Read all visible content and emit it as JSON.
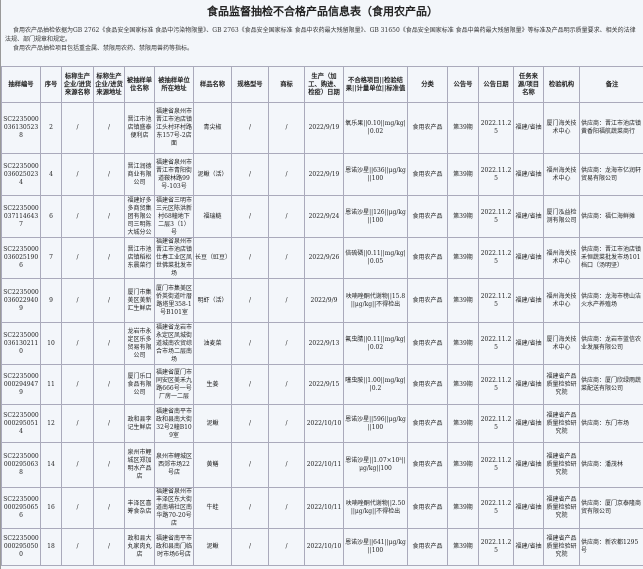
{
  "title": "食品监督抽检不合格产品信息表（食用农产品）",
  "intro": [
    "食用农产品抽检依据为GB 2762《食品安全国家标准 食品中污染物限量》、GB 2763《食品安全国家标准 食品中农药最大残留限量》、GB 31650《食品安全国家标准 食品中兽药最大残留限量》等标准及产品明示质量要求、相关的法律法规、部门规章和规定。",
    "食用农产品抽检项目包括重金属、禁限用农药、禁限用兽药等指标。"
  ],
  "headers": [
    "抽样编号",
    "序号",
    "标称生产企业/进货来源名称",
    "标称生产企业/进货来源地址",
    "被抽样单位名称",
    "被抽样单位所在地址",
    "样品名称",
    "规格型号",
    "商标",
    "生产（加工、购进、检疫）日期",
    "不合格项目||检验结果||计量单位||标准值",
    "分类",
    "公告号",
    "公告日期",
    "任务来源/项目名称",
    "检验机构",
    "备注"
  ],
  "rows": [
    [
      "SC22350000361305238",
      "2",
      "/",
      "/",
      "晋江市池店镇盛泰便利店",
      "福建省泉州市晋江市池店镇江头村环村路东157号-2店面",
      "青尖椒",
      "/",
      "/",
      "2022/9/19",
      "氧乐果||0.10||mg/kg||0.02",
      "食用农产品",
      "第39期",
      "2022.11.25",
      "福建/省抽",
      "厦门海关技术中心",
      "供应商：晋江市池店镇黄香阳福航蔬菜商行"
    ],
    [
      "SC22350000360250234",
      "4",
      "/",
      "/",
      "晋江润德商业有限公司",
      "福建省泉州市晋江市青阳街道鞍林路99号-103号",
      "泥鳅（活）",
      "/",
      "/",
      "2022/9/19",
      "恩诺沙星||636||μg/kg||100",
      "食用农产品",
      "第39期",
      "2022.11.25",
      "福建/省抽",
      "福州海关技术中心",
      "供应商：龙海市亿润轩贸易有限公司"
    ],
    [
      "SC22350000371146437",
      "6",
      "/",
      "/",
      "福建好多多商贸集团有限公司三明陈大城分公",
      "福建省三明市三元区陈洪新村68幢地下二层3（1）号",
      "福瑞鲢",
      "/",
      "/",
      "2022/9/24",
      "恩诺沙星||126||μg/kg||100",
      "食用农产品",
      "第39期",
      "2022.11.25",
      "福建/省抽",
      "厦门泓益检测有限公司",
      "供应商：福仁海鲜摊"
    ],
    [
      "SC22350000360251906",
      "7",
      "/",
      "/",
      "晋江市池店镇稻松东晨菜行",
      "福建省泉州市晋江市池店镇仕春工业区凤世佛菜批发市场",
      "长豆（豇豆）",
      "/",
      "/",
      "2022/9/26",
      "倍硫磷||0.11||mg/kg||0.05",
      "食用农产品",
      "第39期",
      "2022.11.25",
      "福建/省抽",
      "福州海关技术中心",
      "供应商：晋江市池店镇禾恒蔬菜批发市场101档口（汤明坚）"
    ],
    [
      "SC22350000360229409",
      "9",
      "/",
      "/",
      "厦门市集美区美新汇生鲜店",
      "厦门市集美区侨英街道叶厝路塔里358-1号B101室",
      "明虾（活）",
      "/",
      "/",
      "2022/9/9",
      "呋喃唑酮代谢物||15.8||μg/kg||不得检出",
      "食用农产品",
      "第39期",
      "2022.11.25",
      "福建/省抽",
      "福州海关技术中心",
      "供应商：龙海市榜山洁火水产养殖场"
    ],
    [
      "SC22350000361302110",
      "10",
      "/",
      "/",
      "龙岩市永定区乐多贸易有限公司",
      "福建省龙岩市永定区凤城街道城南农贸综合市场二层南场",
      "油麦菜",
      "/",
      "/",
      "2022/9/13",
      "氟虫腈||0.11||mg/kg||0.02",
      "食用农产品",
      "第39期",
      "2022.11.25",
      "福建/省抽",
      "厦门海关技术中心",
      "供应商：龙岩市蓝信农业发展有限公司"
    ],
    [
      "SC22350000002949479",
      "11",
      "/",
      "/",
      "厦门乐口食品有限公司",
      "福建省厦门市同安区美禾九路666号一号厂房一二层",
      "生姜",
      "/",
      "/",
      "2022/9/15",
      "噻虫胺||1.00||mg/kg||0.2",
      "食用农产品",
      "第39期",
      "2022.11.25",
      "福建/省抽",
      "福建省产品质量检验研究院",
      "供应商：厦门欣绿雨蔬菜配送有限公司"
    ],
    [
      "SC22350000002950514",
      "12",
      "/",
      "/",
      "政和县李记生鲜店",
      "福建省南平市政和县南大街32号2幢B109室",
      "泥鳅",
      "/",
      "/",
      "2022/10/10",
      "恩诺沙星||596||μg/kg||100",
      "食用农产品",
      "第39期",
      "2022.11.25",
      "福建/省抽",
      "福建省产品质量检验研究院",
      "供应商：东门市场"
    ],
    [
      "SC22350000002950638",
      "14",
      "/",
      "/",
      "泉州市鲤城区郑加明水产品店",
      "泉州市鲤城区西郊市场22号店",
      "黄鳝",
      "/",
      "/",
      "2022/10/11",
      "恩诺沙星||1.07×10³||μg/kg||100",
      "食用农产品",
      "第39期",
      "2022.11.25",
      "福建/省抽",
      "福建省产品质量检验研究院",
      "供应商：潘茂林"
    ],
    [
      "SC22350000002950656",
      "16",
      "/",
      "/",
      "丰泽区喜筹食杂店",
      "福建省泉州市丰泽区东大街道南埔社区南华路70-20号店",
      "牛蛙",
      "/",
      "/",
      "2022/10/11",
      "呋喃唑酮代谢物||2.50||μg/kg||不得检出",
      "食用农产品",
      "第39期",
      "2022.11.25",
      "福建/省抽",
      "福建省产品质量检验研究院",
      "供应商：厦门京泰隆商贸有限公司"
    ],
    [
      "SC22350000002950500",
      "18",
      "/",
      "/",
      "政和县大丸家肉丸店",
      "福建省南平市政和县南门临时市场6号店",
      "泥鳅",
      "/",
      "/",
      "2022/10/10",
      "恩诺沙星||641||μg/kg||100",
      "食用农产品",
      "第39期",
      "2022.11.25",
      "福建/省抽",
      "福建省产品质量检验研究院",
      "供应商：新农都1295号"
    ]
  ]
}
